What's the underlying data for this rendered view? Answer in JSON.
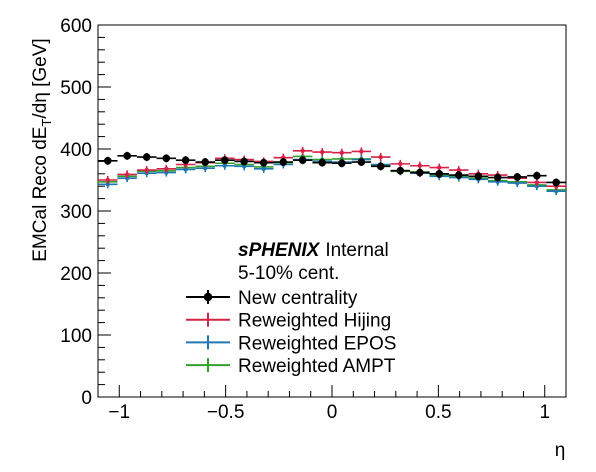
{
  "chart_data": {
    "type": "scatter",
    "title": "",
    "xlabel": "η",
    "ylabel_main": "EMCal Reco dE",
    "ylabel_sub": "T",
    "ylabel_tail": "/dη [GeV]",
    "xlim": [
      -1.1,
      1.1
    ],
    "ylim": [
      0,
      600
    ],
    "xticks": [
      -1,
      -0.5,
      0,
      0.5,
      1
    ],
    "xtick_labels": [
      "−1",
      "−0.5",
      "0",
      "0.5",
      "1"
    ],
    "yticks": [
      0,
      100,
      200,
      300,
      400,
      500,
      600
    ],
    "ytick_labels": [
      "0",
      "100",
      "200",
      "300",
      "400",
      "500",
      "600"
    ],
    "bin_edges_start": -1.1,
    "bin_width": 0.0917,
    "x": [
      -1.054,
      -0.963,
      -0.871,
      -0.779,
      -0.688,
      -0.596,
      -0.504,
      -0.413,
      -0.321,
      -0.229,
      -0.138,
      -0.046,
      0.046,
      0.138,
      0.229,
      0.321,
      0.413,
      0.504,
      0.596,
      0.688,
      0.779,
      0.871,
      0.963,
      1.054
    ],
    "series": [
      {
        "name": "New centrality",
        "color": "#000000",
        "marker": "circle",
        "values": [
          381,
          389,
          387,
          385,
          382,
          379,
          382,
          380,
          378,
          379,
          382,
          378,
          377,
          379,
          372,
          365,
          362,
          360,
          358,
          356,
          354,
          355,
          357,
          346
        ]
      },
      {
        "name": "Reweighted Hijing",
        "color": "#d62247",
        "marker": "cross",
        "values": [
          350,
          359,
          366,
          368,
          375,
          378,
          385,
          383,
          380,
          386,
          397,
          395,
          394,
          396,
          387,
          376,
          373,
          370,
          366,
          360,
          358,
          353,
          346,
          340
        ]
      },
      {
        "name": "Reweighted EPOS",
        "color": "#1f78b4",
        "marker": "cross",
        "values": [
          343,
          353,
          361,
          362,
          367,
          369,
          373,
          372,
          368,
          375,
          383,
          380,
          379,
          383,
          375,
          365,
          361,
          356,
          354,
          351,
          347,
          345,
          340,
          332
        ]
      },
      {
        "name": "Reweighted AMPT",
        "color": "#33a02c",
        "marker": "cross",
        "values": [
          347,
          356,
          364,
          365,
          370,
          372,
          377,
          375,
          371,
          378,
          388,
          383,
          384,
          384,
          374,
          364,
          363,
          358,
          356,
          353,
          349,
          347,
          342,
          334
        ]
      }
    ],
    "legend_location": "bottom-center",
    "annotation_bold": "sPHENIX",
    "annotation_regular": "Internal",
    "annotation_line2": "5-10% cent.",
    "grid": false
  }
}
